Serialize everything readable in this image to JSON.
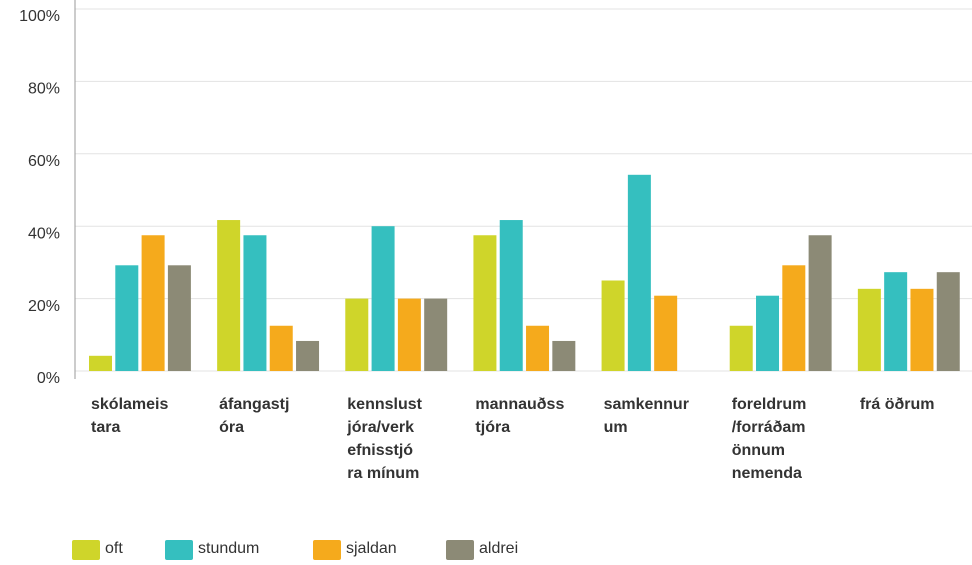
{
  "chart_data": {
    "type": "bar",
    "categories": [
      [
        "skólameis",
        "tara"
      ],
      [
        "áfangastj",
        "óra"
      ],
      [
        "kennslust",
        "jóra/verk",
        "efnisstjó",
        "ra mínum"
      ],
      [
        "mannauðss",
        "tjóra"
      ],
      [
        "samkennur",
        "um"
      ],
      [
        "foreldrum",
        "/forráðam",
        "önnum",
        "nemenda"
      ],
      [
        "frá öðrum"
      ]
    ],
    "series": [
      {
        "name": "oft",
        "color": "#cfd52a",
        "values": [
          4.2,
          41.7,
          20,
          37.5,
          25,
          12.5,
          22.7
        ]
      },
      {
        "name": "stundum",
        "color": "#35bfbf",
        "values": [
          29.2,
          37.5,
          40,
          41.7,
          54.2,
          20.8,
          27.3
        ]
      },
      {
        "name": "sjaldan",
        "color": "#f5aa1c",
        "values": [
          37.5,
          12.5,
          20,
          12.5,
          20.8,
          29.2,
          22.7
        ]
      },
      {
        "name": "aldrei",
        "color": "#8c8a76",
        "values": [
          29.2,
          8.3,
          20,
          8.3,
          0,
          37.5,
          27.3
        ]
      }
    ],
    "ylim": [
      0,
      100
    ],
    "yticks": [
      {
        "value": 0,
        "label": "0%"
      },
      {
        "value": 20,
        "label": "20%"
      },
      {
        "value": 40,
        "label": "40%"
      },
      {
        "value": 60,
        "label": "60%"
      },
      {
        "value": 80,
        "label": "80%"
      },
      {
        "value": 100,
        "label": "100%"
      }
    ],
    "grid": true
  }
}
